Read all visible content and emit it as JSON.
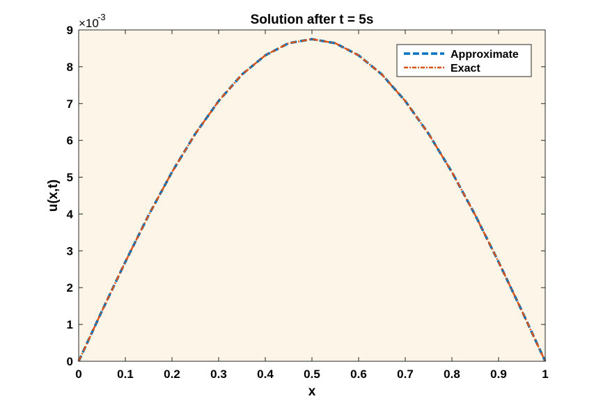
{
  "chart_data": {
    "type": "line",
    "title": "Solution after t = 5s",
    "xlabel": "x",
    "ylabel": "u(x,t)",
    "y_exponent": {
      "base": "×10",
      "power": "-3"
    },
    "xlim": [
      0,
      1
    ],
    "ylim": [
      0,
      0.009
    ],
    "xticks": [
      0,
      0.1,
      0.2,
      0.3,
      0.4,
      0.5,
      0.6,
      0.7,
      0.8,
      0.9,
      1
    ],
    "xtick_labels": [
      "0",
      "0.1",
      "0.2",
      "0.3",
      "0.4",
      "0.5",
      "0.6",
      "0.7",
      "0.8",
      "0.9",
      "1"
    ],
    "yticks": [
      0,
      0.001,
      0.002,
      0.003,
      0.004,
      0.005,
      0.006,
      0.007,
      0.008,
      0.009
    ],
    "ytick_labels": [
      "0",
      "1",
      "2",
      "3",
      "4",
      "5",
      "6",
      "7",
      "8",
      "9"
    ],
    "grid": false,
    "legend_position": "top-right",
    "background_color": "#fdf5e8",
    "x": [
      0,
      0.05,
      0.1,
      0.15,
      0.2,
      0.25,
      0.3,
      0.35,
      0.4,
      0.45,
      0.5,
      0.55,
      0.6,
      0.65,
      0.7,
      0.75,
      0.8,
      0.85,
      0.9,
      0.95,
      1
    ],
    "series": [
      {
        "name": "Approximate",
        "color": "#0072bd",
        "style": "dashed",
        "values": [
          0,
          0.00137,
          0.0027,
          0.00397,
          0.00514,
          0.00618,
          0.00707,
          0.00779,
          0.00831,
          0.00864,
          0.00875,
          0.00864,
          0.00831,
          0.00779,
          0.00707,
          0.00618,
          0.00514,
          0.00397,
          0.0027,
          0.00137,
          0
        ]
      },
      {
        "name": "Exact",
        "color": "#d95319",
        "style": "dashdot",
        "values": [
          0,
          0.00137,
          0.0027,
          0.00397,
          0.00514,
          0.00618,
          0.00707,
          0.00779,
          0.00831,
          0.00864,
          0.00875,
          0.00864,
          0.00831,
          0.00779,
          0.00707,
          0.00618,
          0.00514,
          0.00397,
          0.0027,
          0.00137,
          0
        ]
      }
    ]
  }
}
